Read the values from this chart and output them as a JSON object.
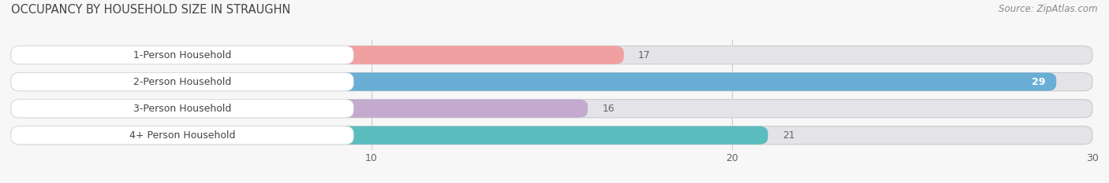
{
  "title": "OCCUPANCY BY HOUSEHOLD SIZE IN STRAUGHN",
  "source": "Source: ZipAtlas.com",
  "categories": [
    "1-Person Household",
    "2-Person Household",
    "3-Person Household",
    "4+ Person Household"
  ],
  "values": [
    17,
    29,
    16,
    21
  ],
  "bar_colors": [
    "#f0a0a0",
    "#6aaed6",
    "#c4aacf",
    "#5bbcbe"
  ],
  "bar_bg_color": "#e4e4e8",
  "label_bg_color": "#f5f5f5",
  "xlim": [
    0,
    30
  ],
  "xticks": [
    10,
    20,
    30
  ],
  "value_inside": [
    false,
    true,
    false,
    false
  ],
  "fig_bg_color": "#f7f7f7",
  "title_color": "#444444",
  "source_color": "#888888",
  "label_color": "#444444",
  "value_color_outside": "#666666",
  "value_color_inside": "#ffffff"
}
